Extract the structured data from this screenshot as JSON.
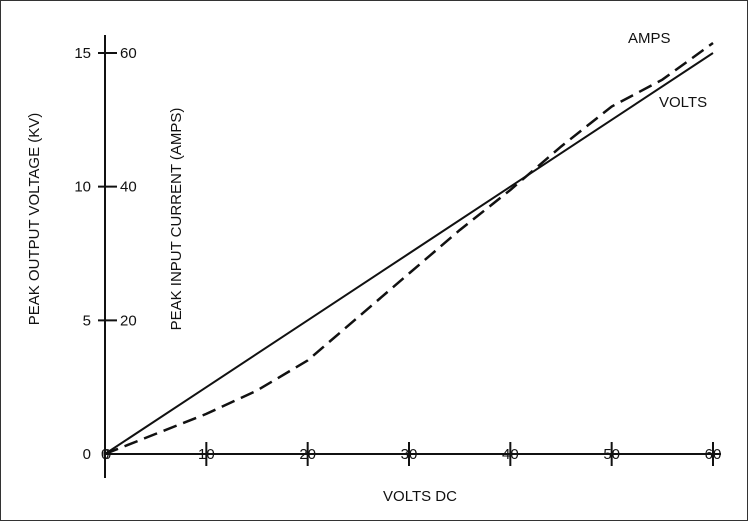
{
  "chart_data": {
    "type": "line",
    "xlabel": "VOLTS DC",
    "x_ticks": [
      "0",
      "10",
      "20",
      "30",
      "40",
      "50",
      "60"
    ],
    "xlim": [
      0,
      60
    ],
    "left_axes": [
      {
        "label": "PEAK OUTPUT VOLTAGE (KV)",
        "ticks": [
          "0",
          "5",
          "10",
          "15"
        ],
        "ylim": [
          0,
          15
        ]
      },
      {
        "label": "PEAK INPUT CURRENT (AMPS)",
        "ticks": [
          "0",
          "20",
          "40",
          "60"
        ],
        "ylim": [
          0,
          60
        ]
      }
    ],
    "series": [
      {
        "name": "VOLTS",
        "style": "solid",
        "axis": "PEAK OUTPUT VOLTAGE (KV)",
        "x": [
          0,
          10,
          20,
          30,
          40,
          50,
          60
        ],
        "y": [
          0,
          2.5,
          5.0,
          7.5,
          10.0,
          12.5,
          15.0
        ]
      },
      {
        "name": "AMPS",
        "style": "dashed",
        "axis": "PEAK INPUT CURRENT (AMPS)",
        "x": [
          0,
          5,
          10,
          15,
          20,
          25,
          30,
          35,
          40,
          45,
          50,
          55,
          60
        ],
        "y": [
          0,
          3,
          6,
          9.5,
          14,
          20.5,
          27,
          33.5,
          39.5,
          46,
          52,
          56,
          61.5
        ]
      }
    ],
    "colors": {
      "ink": "#111111",
      "frame": "#333333",
      "background": "#ffffff"
    }
  }
}
